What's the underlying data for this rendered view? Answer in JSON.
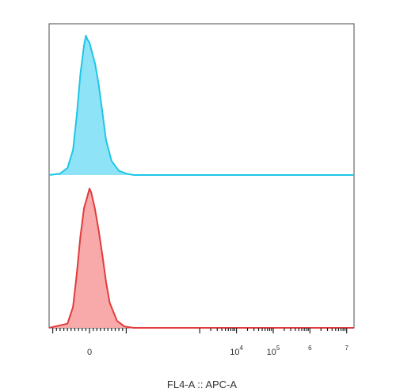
{
  "chart_data": {
    "type": "area",
    "xlabel": "FL4-A :: APC-A",
    "ylabel": "",
    "title": "",
    "x_scale": "biexponential",
    "xlim": [
      -1.1,
      7.2
    ],
    "tick_labels": [
      {
        "base": "0",
        "exp": "",
        "value": 0
      },
      {
        "base": "10",
        "exp": "4",
        "value": 4
      },
      {
        "base": "10",
        "exp": "5",
        "value": 5
      },
      {
        "base": "",
        "exp": "6",
        "value": 6
      },
      {
        "base": "",
        "exp": "7",
        "value": 7
      }
    ],
    "grid": false,
    "legend": "none",
    "series": [
      {
        "color": "#1fc6e6",
        "fill": "#8fe3f7",
        "x": [
          -1.1,
          -0.8,
          -0.6,
          -0.45,
          -0.35,
          -0.25,
          -0.15,
          -0.1,
          -0.05,
          0.0,
          0.05,
          0.15,
          0.25,
          0.35,
          0.45,
          0.6,
          0.8,
          1.0,
          1.2,
          3.0,
          5.0,
          7.2
        ],
        "y": [
          0,
          0.01,
          0.05,
          0.18,
          0.42,
          0.72,
          0.93,
          1.0,
          0.97,
          0.95,
          0.9,
          0.8,
          0.65,
          0.45,
          0.25,
          0.1,
          0.03,
          0.01,
          0,
          0,
          0,
          0
        ]
      },
      {
        "color": "#e23c3c",
        "fill": "#f8a9a9",
        "x": [
          -1.1,
          -0.6,
          -0.45,
          -0.35,
          -0.25,
          -0.15,
          -0.05,
          0.0,
          0.05,
          0.15,
          0.25,
          0.35,
          0.45,
          0.55,
          0.75,
          0.95,
          1.2,
          3.0,
          5.0,
          7.2
        ],
        "y": [
          0,
          0.03,
          0.15,
          0.38,
          0.65,
          0.86,
          0.95,
          1.0,
          0.97,
          0.85,
          0.7,
          0.52,
          0.33,
          0.18,
          0.05,
          0.01,
          0,
          0,
          0,
          0
        ]
      }
    ]
  }
}
